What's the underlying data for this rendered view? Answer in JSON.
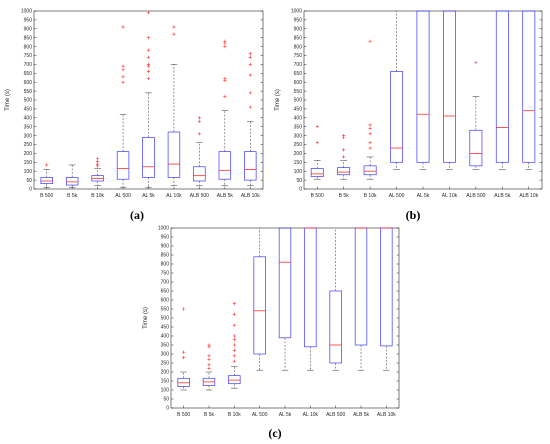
{
  "chart_data": [
    {
      "type": "box",
      "panel_label": "(a)",
      "ylabel": "Time (s)",
      "ylim": [
        0,
        1000
      ],
      "yticks": [
        0,
        50,
        100,
        150,
        200,
        250,
        300,
        350,
        400,
        450,
        500,
        550,
        600,
        650,
        700,
        750,
        800,
        850,
        900,
        950,
        1000
      ],
      "categories": [
        "B 500",
        "B 5k",
        "B 10k",
        "AL 500",
        "AL 5k",
        "AL 10k",
        "ALB 500",
        "ALB 5k",
        "ALB 10k"
      ],
      "boxes": [
        {
          "whisker_low": 10,
          "q1": 30,
          "median": 45,
          "q3": 65,
          "whisker_high": 110,
          "outliers": [
            135
          ]
        },
        {
          "whisker_low": 10,
          "q1": 22,
          "median": 40,
          "q3": 65,
          "whisker_high": 135,
          "outliers": []
        },
        {
          "whisker_low": 20,
          "q1": 45,
          "median": 60,
          "q3": 75,
          "whisker_high": 115,
          "outliers": [
            130,
            140,
            155,
            170
          ]
        },
        {
          "whisker_low": 10,
          "q1": 55,
          "median": 115,
          "q3": 210,
          "whisker_high": 420,
          "outliers": [
            600,
            630,
            670,
            690,
            910
          ]
        },
        {
          "whisker_low": 10,
          "q1": 65,
          "median": 125,
          "q3": 290,
          "whisker_high": 540,
          "outliers": [
            620,
            660,
            690,
            700,
            740,
            780,
            850,
            990
          ]
        },
        {
          "whisker_low": 20,
          "q1": 65,
          "median": 140,
          "q3": 320,
          "whisker_high": 700,
          "outliers": [
            870,
            910
          ]
        },
        {
          "whisker_low": 20,
          "q1": 45,
          "median": 75,
          "q3": 125,
          "whisker_high": 260,
          "outliers": [
            310,
            380,
            400
          ]
        },
        {
          "whisker_low": 20,
          "q1": 55,
          "median": 105,
          "q3": 210,
          "whisker_high": 440,
          "outliers": [
            520,
            610,
            620,
            800,
            820,
            830
          ]
        },
        {
          "whisker_low": 20,
          "q1": 50,
          "median": 110,
          "q3": 210,
          "whisker_high": 380,
          "outliers": [
            460,
            540,
            640,
            700,
            740,
            760
          ]
        }
      ]
    },
    {
      "type": "box",
      "panel_label": "(b)",
      "ylabel": "Time (s)",
      "ylim": [
        0,
        1000
      ],
      "yticks": [
        0,
        50,
        100,
        150,
        200,
        250,
        300,
        350,
        400,
        450,
        500,
        550,
        600,
        650,
        700,
        750,
        800,
        850,
        900,
        950,
        1000
      ],
      "categories": [
        "B 500",
        "B 5k",
        "B 10k",
        "AL 500",
        "AL 5k",
        "AL 10k",
        "ALB 500",
        "ALB 5k",
        "ALB 10k"
      ],
      "boxes": [
        {
          "whisker_low": 55,
          "q1": 70,
          "median": 85,
          "q3": 115,
          "whisker_high": 160,
          "outliers": [
            260,
            350
          ]
        },
        {
          "whisker_low": 55,
          "q1": 80,
          "median": 95,
          "q3": 120,
          "whisker_high": 160,
          "outliers": [
            180,
            220,
            290,
            300
          ]
        },
        {
          "whisker_low": 55,
          "q1": 80,
          "median": 100,
          "q3": 130,
          "whisker_high": 180,
          "outliers": [
            230,
            260,
            310,
            340,
            360,
            830
          ]
        },
        {
          "whisker_low": 110,
          "q1": 150,
          "median": 230,
          "q3": 660,
          "whisker_high": 1000,
          "outliers": []
        },
        {
          "whisker_low": 110,
          "q1": 150,
          "median": 420,
          "q3": 1000,
          "whisker_high": 1000,
          "outliers": []
        },
        {
          "whisker_low": 110,
          "q1": 150,
          "median": 410,
          "q3": 1000,
          "whisker_high": 1000,
          "outliers": []
        },
        {
          "whisker_low": 110,
          "q1": 130,
          "median": 200,
          "q3": 330,
          "whisker_high": 520,
          "outliers": [
            710
          ]
        },
        {
          "whisker_low": 110,
          "q1": 150,
          "median": 345,
          "q3": 1000,
          "whisker_high": 1000,
          "outliers": []
        },
        {
          "whisker_low": 110,
          "q1": 150,
          "median": 440,
          "q3": 1000,
          "whisker_high": 1000,
          "outliers": []
        }
      ]
    },
    {
      "type": "box",
      "panel_label": "(c)",
      "ylabel": "Time (s)",
      "ylim": [
        0,
        1000
      ],
      "yticks": [
        0,
        50,
        100,
        150,
        200,
        250,
        300,
        350,
        400,
        450,
        500,
        550,
        600,
        650,
        700,
        750,
        800,
        850,
        900,
        950,
        1000
      ],
      "categories": [
        "B 500",
        "B 5k",
        "B 10k",
        "AL 500",
        "AL 5k",
        "AL 10k",
        "ALB 500",
        "ALB 5k",
        "ALB 10k"
      ],
      "boxes": [
        {
          "whisker_low": 100,
          "q1": 120,
          "median": 140,
          "q3": 165,
          "whisker_high": 200,
          "outliers": [
            280,
            310,
            550
          ]
        },
        {
          "whisker_low": 100,
          "q1": 125,
          "median": 145,
          "q3": 165,
          "whisker_high": 200,
          "outliers": [
            220,
            240,
            270,
            290,
            340,
            350
          ]
        },
        {
          "whisker_low": 110,
          "q1": 135,
          "median": 155,
          "q3": 180,
          "whisker_high": 230,
          "outliers": [
            260,
            290,
            320,
            350,
            380,
            400,
            460,
            520,
            580
          ]
        },
        {
          "whisker_low": 210,
          "q1": 300,
          "median": 540,
          "q3": 840,
          "whisker_high": 1000,
          "outliers": []
        },
        {
          "whisker_low": 210,
          "q1": 390,
          "median": 810,
          "q3": 1000,
          "whisker_high": 1000,
          "outliers": []
        },
        {
          "whisker_low": 210,
          "q1": 340,
          "median": 1000,
          "q3": 1000,
          "whisker_high": 1000,
          "outliers": []
        },
        {
          "whisker_low": 210,
          "q1": 250,
          "median": 350,
          "q3": 650,
          "whisker_high": 1000,
          "outliers": []
        },
        {
          "whisker_low": 210,
          "q1": 350,
          "median": 1000,
          "q3": 1000,
          "whisker_high": 1000,
          "outliers": []
        },
        {
          "whisker_low": 210,
          "q1": 345,
          "median": 1000,
          "q3": 1000,
          "whisker_high": 1000,
          "outliers": []
        }
      ]
    }
  ],
  "colors": {
    "box": "#3a3aff",
    "median": "#ff3030",
    "whisker": "#333333",
    "outlier": "#ff3030",
    "axis": "#262626"
  }
}
